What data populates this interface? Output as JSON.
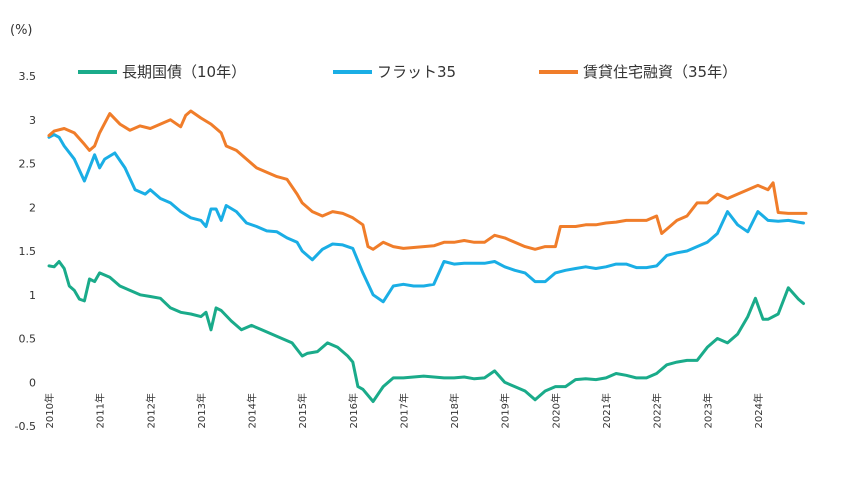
{
  "chart_data": {
    "type": "line",
    "unit_label": "(%)",
    "ylim": [
      -0.5,
      3.5
    ],
    "y_ticks": [
      "3.5",
      "3",
      "2.5",
      "2",
      "1.5",
      "1",
      "0.5",
      "0",
      "-0.5"
    ],
    "x_range": [
      2010.0,
      2024.95
    ],
    "x_ticks": [
      "2010年",
      "2011年",
      "2012年",
      "2013年",
      "2014年",
      "2015年",
      "2016年",
      "2017年",
      "2018年",
      "2019年",
      "2020年",
      "2021年",
      "2022年",
      "2023年",
      "2024年"
    ],
    "grid": false,
    "legend_position": "top",
    "series": [
      {
        "name": "長期国債（10年）",
        "color": "#1aab8a",
        "x": [
          2010.0,
          2010.1,
          2010.2,
          2010.3,
          2010.4,
          2010.5,
          2010.6,
          2010.7,
          2010.8,
          2010.9,
          2011.0,
          2011.2,
          2011.4,
          2011.6,
          2011.8,
          2012.0,
          2012.2,
          2012.4,
          2012.6,
          2012.8,
          2013.0,
          2013.1,
          2013.2,
          2013.3,
          2013.4,
          2013.6,
          2013.8,
          2014.0,
          2014.2,
          2014.4,
          2014.6,
          2014.8,
          2015.0,
          2015.1,
          2015.3,
          2015.5,
          2015.7,
          2015.9,
          2016.0,
          2016.1,
          2016.2,
          2016.4,
          2016.6,
          2016.8,
          2017.0,
          2017.2,
          2017.4,
          2017.6,
          2017.8,
          2018.0,
          2018.2,
          2018.4,
          2018.6,
          2018.8,
          2019.0,
          2019.2,
          2019.4,
          2019.6,
          2019.8,
          2020.0,
          2020.2,
          2020.4,
          2020.6,
          2020.8,
          2021.0,
          2021.2,
          2021.4,
          2021.6,
          2021.8,
          2022.0,
          2022.2,
          2022.4,
          2022.6,
          2022.8,
          2023.0,
          2023.2,
          2023.4,
          2023.6,
          2023.8,
          2023.95,
          2024.1,
          2024.2,
          2024.4,
          2024.6,
          2024.8,
          2024.9
        ],
        "values": [
          1.33,
          1.32,
          1.38,
          1.3,
          1.1,
          1.05,
          0.95,
          0.93,
          1.18,
          1.15,
          1.25,
          1.2,
          1.1,
          1.05,
          1.0,
          0.98,
          0.96,
          0.85,
          0.8,
          0.78,
          0.75,
          0.8,
          0.6,
          0.85,
          0.82,
          0.7,
          0.6,
          0.65,
          0.6,
          0.55,
          0.5,
          0.45,
          0.3,
          0.33,
          0.35,
          0.45,
          0.4,
          0.3,
          0.23,
          -0.05,
          -0.08,
          -0.22,
          -0.05,
          0.05,
          0.05,
          0.06,
          0.07,
          0.06,
          0.05,
          0.05,
          0.06,
          0.04,
          0.05,
          0.13,
          0.0,
          -0.05,
          -0.1,
          -0.2,
          -0.1,
          -0.05,
          -0.05,
          0.03,
          0.04,
          0.03,
          0.05,
          0.1,
          0.08,
          0.05,
          0.05,
          0.1,
          0.2,
          0.23,
          0.25,
          0.25,
          0.4,
          0.5,
          0.45,
          0.55,
          0.75,
          0.96,
          0.72,
          0.72,
          0.78,
          1.08,
          0.95,
          0.9
        ]
      },
      {
        "name": "フラット35",
        "color": "#1aaee5",
        "x": [
          2010.0,
          2010.1,
          2010.2,
          2010.3,
          2010.5,
          2010.7,
          2010.8,
          2010.9,
          2011.0,
          2011.1,
          2011.3,
          2011.5,
          2011.7,
          2011.9,
          2012.0,
          2012.2,
          2012.4,
          2012.6,
          2012.8,
          2013.0,
          2013.1,
          2013.2,
          2013.3,
          2013.4,
          2013.5,
          2013.7,
          2013.9,
          2014.1,
          2014.3,
          2014.5,
          2014.7,
          2014.9,
          2015.0,
          2015.2,
          2015.4,
          2015.6,
          2015.8,
          2016.0,
          2016.2,
          2016.4,
          2016.6,
          2016.8,
          2017.0,
          2017.2,
          2017.4,
          2017.6,
          2017.8,
          2018.0,
          2018.2,
          2018.4,
          2018.6,
          2018.8,
          2019.0,
          2019.2,
          2019.4,
          2019.6,
          2019.8,
          2020.0,
          2020.2,
          2020.4,
          2020.6,
          2020.8,
          2021.0,
          2021.2,
          2021.4,
          2021.6,
          2021.8,
          2022.0,
          2022.2,
          2022.4,
          2022.6,
          2022.8,
          2023.0,
          2023.2,
          2023.4,
          2023.6,
          2023.8,
          2024.0,
          2024.2,
          2024.4,
          2024.6,
          2024.8,
          2024.9
        ],
        "values": [
          2.8,
          2.83,
          2.8,
          2.7,
          2.55,
          2.3,
          2.45,
          2.6,
          2.45,
          2.55,
          2.62,
          2.45,
          2.2,
          2.15,
          2.2,
          2.1,
          2.05,
          1.95,
          1.88,
          1.85,
          1.78,
          1.98,
          1.98,
          1.85,
          2.02,
          1.95,
          1.82,
          1.78,
          1.73,
          1.72,
          1.65,
          1.6,
          1.5,
          1.4,
          1.52,
          1.58,
          1.57,
          1.53,
          1.25,
          1.0,
          0.92,
          1.1,
          1.12,
          1.1,
          1.1,
          1.12,
          1.38,
          1.35,
          1.36,
          1.36,
          1.36,
          1.38,
          1.32,
          1.28,
          1.25,
          1.15,
          1.15,
          1.25,
          1.28,
          1.3,
          1.32,
          1.3,
          1.32,
          1.35,
          1.35,
          1.31,
          1.31,
          1.33,
          1.45,
          1.48,
          1.5,
          1.55,
          1.6,
          1.7,
          1.95,
          1.8,
          1.72,
          1.95,
          1.85,
          1.84,
          1.85,
          1.83,
          1.82
        ]
      },
      {
        "name": "賃貸住宅融資（35年）",
        "color": "#f07d2a",
        "x": [
          2010.0,
          2010.1,
          2010.3,
          2010.5,
          2010.7,
          2010.8,
          2010.9,
          2011.0,
          2011.2,
          2011.4,
          2011.6,
          2011.8,
          2012.0,
          2012.2,
          2012.4,
          2012.6,
          2012.7,
          2012.8,
          2013.0,
          2013.2,
          2013.4,
          2013.5,
          2013.7,
          2013.9,
          2014.1,
          2014.3,
          2014.5,
          2014.7,
          2014.9,
          2015.0,
          2015.2,
          2015.4,
          2015.6,
          2015.8,
          2016.0,
          2016.2,
          2016.3,
          2016.4,
          2016.6,
          2016.8,
          2017.0,
          2017.2,
          2017.4,
          2017.6,
          2017.8,
          2018.0,
          2018.2,
          2018.4,
          2018.6,
          2018.8,
          2019.0,
          2019.2,
          2019.4,
          2019.6,
          2019.8,
          2020.0,
          2020.1,
          2020.2,
          2020.4,
          2020.6,
          2020.8,
          2021.0,
          2021.2,
          2021.4,
          2021.6,
          2021.8,
          2022.0,
          2022.1,
          2022.2,
          2022.4,
          2022.6,
          2022.8,
          2023.0,
          2023.2,
          2023.4,
          2023.6,
          2023.8,
          2024.0,
          2024.2,
          2024.3,
          2024.4,
          2024.6,
          2024.8,
          2024.95
        ],
        "values": [
          2.82,
          2.87,
          2.9,
          2.85,
          2.72,
          2.65,
          2.7,
          2.85,
          3.07,
          2.95,
          2.88,
          2.93,
          2.9,
          2.95,
          3.0,
          2.92,
          3.05,
          3.1,
          3.02,
          2.95,
          2.85,
          2.7,
          2.65,
          2.55,
          2.45,
          2.4,
          2.35,
          2.32,
          2.15,
          2.05,
          1.95,
          1.9,
          1.95,
          1.93,
          1.88,
          1.8,
          1.55,
          1.52,
          1.6,
          1.55,
          1.53,
          1.54,
          1.55,
          1.56,
          1.6,
          1.6,
          1.62,
          1.6,
          1.6,
          1.68,
          1.65,
          1.6,
          1.55,
          1.52,
          1.55,
          1.55,
          1.78,
          1.78,
          1.78,
          1.8,
          1.8,
          1.82,
          1.83,
          1.85,
          1.85,
          1.85,
          1.9,
          1.7,
          1.75,
          1.85,
          1.9,
          2.05,
          2.05,
          2.15,
          2.1,
          2.15,
          2.2,
          2.25,
          2.2,
          2.28,
          1.94,
          1.93,
          1.93,
          1.93
        ]
      }
    ]
  }
}
